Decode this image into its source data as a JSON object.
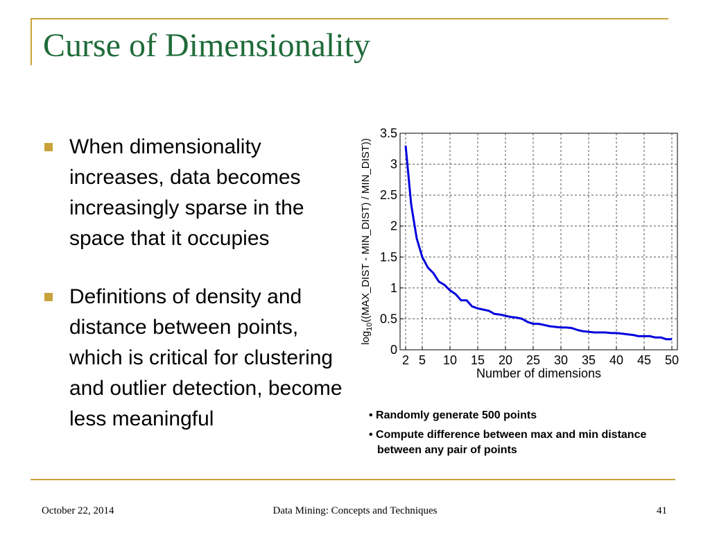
{
  "slide": {
    "title": "Curse of Dimensionality",
    "bullets": [
      "When dimensionality increases, data becomes increasingly sparse in the space that it occupies",
      "Definitions of density and distance between points, which is critical for clustering and outlier detection, become less meaningful"
    ],
    "notes": [
      "• Randomly generate 500 points",
      "• Compute difference between max and min distance between any pair of points"
    ],
    "footer": {
      "date": "October 22, 2014",
      "center": "Data Mining: Concepts and Techniques",
      "page": "41"
    }
  },
  "colors": {
    "title": "#1f6b3a",
    "accent": "#c8a23a",
    "line": "#0000dd"
  },
  "chart_data": {
    "type": "line",
    "xlabel": "Number of dimensions",
    "ylabel_prefix": "log",
    "ylabel_sub": "10",
    "ylabel_rest": "((MAX_DIST - MIN_DIST) / MIN_DIST))",
    "xlim": [
      1,
      51
    ],
    "ylim": [
      0,
      3.5
    ],
    "xticks": [
      2,
      5,
      10,
      15,
      20,
      25,
      30,
      35,
      40,
      45,
      50
    ],
    "yticks": [
      0,
      0.5,
      1,
      1.5,
      2,
      2.5,
      3,
      3.5
    ],
    "grid": true,
    "series": [
      {
        "x": [
          2,
          3,
          4,
          5,
          6,
          7,
          8,
          9,
          10,
          11,
          12,
          13,
          14,
          15,
          16,
          17,
          18,
          19,
          20,
          21,
          22,
          23,
          24,
          25,
          26,
          27,
          28,
          29,
          30,
          31,
          32,
          33,
          34,
          35,
          36,
          37,
          38,
          39,
          40,
          41,
          42,
          43,
          44,
          45,
          46,
          47,
          48,
          49,
          50
        ],
        "values": [
          3.3,
          2.35,
          1.8,
          1.5,
          1.33,
          1.24,
          1.1,
          1.05,
          0.96,
          0.9,
          0.8,
          0.8,
          0.7,
          0.67,
          0.65,
          0.63,
          0.58,
          0.57,
          0.55,
          0.53,
          0.52,
          0.5,
          0.45,
          0.42,
          0.42,
          0.4,
          0.38,
          0.37,
          0.36,
          0.36,
          0.35,
          0.32,
          0.3,
          0.29,
          0.28,
          0.28,
          0.28,
          0.27,
          0.27,
          0.26,
          0.25,
          0.24,
          0.22,
          0.22,
          0.22,
          0.2,
          0.2,
          0.17,
          0.17
        ]
      }
    ]
  }
}
